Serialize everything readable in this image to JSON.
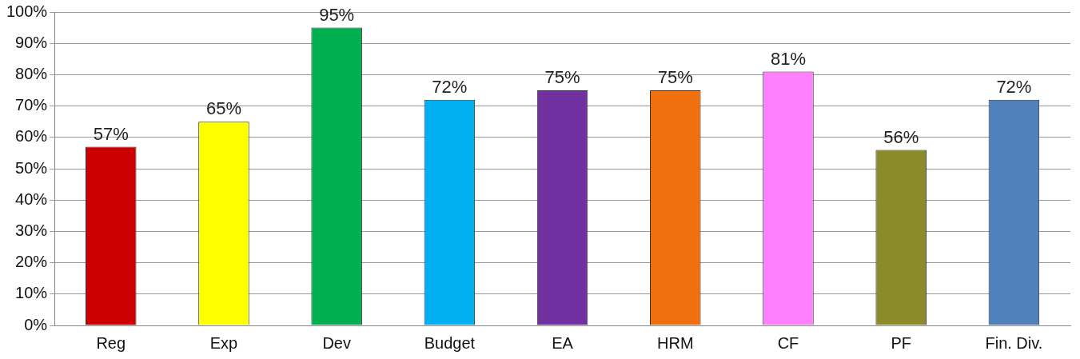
{
  "chart_data": {
    "type": "bar",
    "categories": [
      "Reg",
      "Exp",
      "Dev",
      "Budget",
      "EA",
      "HRM",
      "CF",
      "PF",
      "Fin. Div."
    ],
    "values": [
      57,
      65,
      95,
      72,
      75,
      75,
      81,
      56,
      72
    ],
    "colors": [
      "#cc0000",
      "#ffff00",
      "#00b050",
      "#00b0f0",
      "#7030a0",
      "#f07010",
      "#ff80ff",
      "#8b8b2b",
      "#4f81bd"
    ],
    "value_labels": [
      "57%",
      "65%",
      "95%",
      "72%",
      "75%",
      "75%",
      "81%",
      "56%",
      "72%"
    ],
    "ylim": [
      0,
      100
    ],
    "yticks": [
      {
        "value": 0,
        "label": "0%"
      },
      {
        "value": 10,
        "label": "10%"
      },
      {
        "value": 20,
        "label": "20%"
      },
      {
        "value": 30,
        "label": "30%"
      },
      {
        "value": 40,
        "label": "40%"
      },
      {
        "value": 50,
        "label": "50%"
      },
      {
        "value": 60,
        "label": "60%"
      },
      {
        "value": 70,
        "label": "70%"
      },
      {
        "value": 80,
        "label": "80%"
      },
      {
        "value": 90,
        "label": "90%"
      },
      {
        "value": 100,
        "label": "100%"
      }
    ],
    "grid": "y"
  }
}
